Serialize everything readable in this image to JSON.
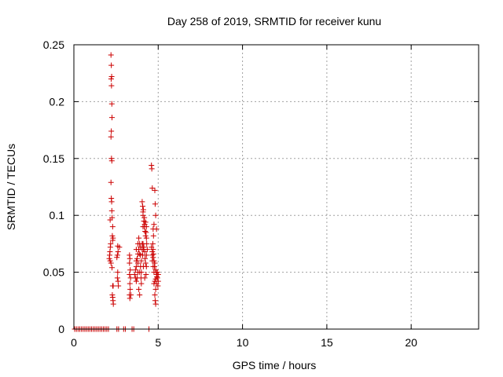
{
  "chart_data": {
    "type": "scatter",
    "title": "Day 258 of 2019, SRMTID for receiver kunu",
    "xlabel": "GPS time / hours",
    "ylabel": "SRMTID / TECUs",
    "xlim": [
      0,
      24
    ],
    "ylim": [
      0,
      0.25
    ],
    "xticks": [
      0,
      5,
      10,
      15,
      20
    ],
    "xtick_labels": [
      "0",
      "5",
      "10",
      "15",
      "20"
    ],
    "yticks": [
      0,
      0.05,
      0.1,
      0.15,
      0.2,
      0.25
    ],
    "ytick_labels": [
      "0",
      "0.05",
      "0.1",
      "0.15",
      "0.2",
      "0.25"
    ],
    "grid": true,
    "legend": "none",
    "marker": "plus",
    "colors": {
      "points": "#cc0000",
      "grid": "#a0a0a0",
      "axes": "#000000"
    },
    "series": [
      {
        "points": [
          [
            0.05,
            0
          ],
          [
            0.15,
            0
          ],
          [
            0.25,
            0
          ],
          [
            0.35,
            0
          ],
          [
            0.45,
            0
          ],
          [
            0.55,
            0
          ],
          [
            0.65,
            0
          ],
          [
            0.75,
            0
          ],
          [
            0.85,
            0
          ],
          [
            0.95,
            0
          ],
          [
            1.05,
            0
          ],
          [
            1.15,
            0
          ],
          [
            1.25,
            0
          ],
          [
            1.35,
            0
          ],
          [
            1.45,
            0
          ],
          [
            1.55,
            0
          ],
          [
            1.65,
            0
          ],
          [
            1.75,
            0
          ],
          [
            1.85,
            0
          ],
          [
            1.95,
            0
          ],
          [
            2.05,
            0
          ],
          [
            2.55,
            0
          ],
          [
            2.65,
            0
          ],
          [
            2.95,
            0
          ],
          [
            3.05,
            0
          ],
          [
            3.45,
            0
          ],
          [
            3.55,
            0
          ],
          [
            4.45,
            0
          ],
          [
            2.2,
            0.241
          ],
          [
            2.22,
            0.232
          ],
          [
            2.24,
            0.222
          ],
          [
            2.21,
            0.22
          ],
          [
            2.23,
            0.214
          ],
          [
            2.25,
            0.198
          ],
          [
            2.26,
            0.186
          ],
          [
            2.22,
            0.174
          ],
          [
            2.2,
            0.169
          ],
          [
            2.23,
            0.15
          ],
          [
            2.25,
            0.148
          ],
          [
            2.2,
            0.129
          ],
          [
            2.22,
            0.115
          ],
          [
            2.24,
            0.112
          ],
          [
            2.25,
            0.104
          ],
          [
            2.27,
            0.098
          ],
          [
            2.15,
            0.096
          ],
          [
            2.3,
            0.09
          ],
          [
            2.28,
            0.082
          ],
          [
            2.32,
            0.08
          ],
          [
            2.3,
            0.078
          ],
          [
            2.18,
            0.075
          ],
          [
            2.16,
            0.072
          ],
          [
            2.14,
            0.068
          ],
          [
            2.12,
            0.065
          ],
          [
            2.1,
            0.062
          ],
          [
            2.15,
            0.06
          ],
          [
            2.2,
            0.058
          ],
          [
            2.26,
            0.054
          ],
          [
            2.3,
            0.038
          ],
          [
            2.33,
            0.038
          ],
          [
            2.28,
            0.03
          ],
          [
            2.3,
            0.028
          ],
          [
            2.32,
            0.025
          ],
          [
            2.34,
            0.022
          ],
          [
            2.6,
            0.073
          ],
          [
            2.62,
            0.068
          ],
          [
            2.58,
            0.065
          ],
          [
            2.55,
            0.063
          ],
          [
            2.6,
            0.05
          ],
          [
            2.58,
            0.045
          ],
          [
            2.62,
            0.042
          ],
          [
            2.64,
            0.038
          ],
          [
            2.7,
            0.072
          ],
          [
            3.3,
            0.065
          ],
          [
            3.32,
            0.062
          ],
          [
            3.3,
            0.058
          ],
          [
            3.34,
            0.052
          ],
          [
            3.3,
            0.048
          ],
          [
            3.36,
            0.045
          ],
          [
            3.32,
            0.04
          ],
          [
            3.34,
            0.035
          ],
          [
            3.3,
            0.03
          ],
          [
            3.32,
            0.027
          ],
          [
            3.38,
            0.03
          ],
          [
            3.6,
            0.048
          ],
          [
            3.65,
            0.052
          ],
          [
            3.7,
            0.055
          ],
          [
            3.7,
            0.06
          ],
          [
            3.75,
            0.062
          ],
          [
            3.8,
            0.058
          ],
          [
            3.8,
            0.066
          ],
          [
            3.85,
            0.07
          ],
          [
            3.9,
            0.075
          ],
          [
            3.85,
            0.08
          ],
          [
            3.9,
            0.066
          ],
          [
            3.95,
            0.072
          ],
          [
            3.95,
            0.065
          ],
          [
            3.9,
            0.05
          ],
          [
            3.8,
            0.05
          ],
          [
            3.75,
            0.045
          ],
          [
            3.7,
            0.042
          ],
          [
            3.85,
            0.035
          ],
          [
            3.9,
            0.03
          ],
          [
            4.0,
            0.04
          ],
          [
            4.0,
            0.06
          ],
          [
            4.05,
            0.07
          ],
          [
            4.05,
            0.075
          ],
          [
            4.0,
            0.05
          ],
          [
            3.98,
            0.045
          ],
          [
            3.95,
            0.055
          ],
          [
            3.65,
            0.045
          ],
          [
            3.7,
            0.07
          ],
          [
            3.8,
            0.075
          ],
          [
            4.05,
            0.112
          ],
          [
            4.08,
            0.108
          ],
          [
            4.1,
            0.103
          ],
          [
            4.12,
            0.105
          ],
          [
            4.1,
            0.1
          ],
          [
            4.15,
            0.095
          ],
          [
            4.18,
            0.09
          ],
          [
            4.2,
            0.092
          ],
          [
            4.25,
            0.094
          ],
          [
            4.3,
            0.09
          ],
          [
            4.22,
            0.086
          ],
          [
            4.25,
            0.082
          ],
          [
            4.3,
            0.08
          ],
          [
            4.28,
            0.085
          ],
          [
            4.1,
            0.075
          ],
          [
            4.12,
            0.07
          ],
          [
            4.15,
            0.072
          ],
          [
            4.2,
            0.068
          ],
          [
            4.22,
            0.062
          ],
          [
            4.25,
            0.058
          ],
          [
            4.3,
            0.065
          ],
          [
            4.3,
            0.055
          ],
          [
            4.28,
            0.048
          ],
          [
            4.2,
            0.045
          ],
          [
            4.12,
            0.055
          ],
          [
            4.08,
            0.065
          ],
          [
            4.35,
            0.07
          ],
          [
            4.32,
            0.075
          ],
          [
            4.1,
            0.09
          ],
          [
            4.18,
            0.098
          ],
          [
            4.6,
            0.144
          ],
          [
            4.62,
            0.141
          ],
          [
            4.65,
            0.124
          ],
          [
            4.8,
            0.122
          ],
          [
            4.82,
            0.11
          ],
          [
            4.85,
            0.1
          ],
          [
            4.75,
            0.092
          ],
          [
            4.7,
            0.088
          ],
          [
            4.9,
            0.088
          ],
          [
            4.72,
            0.082
          ],
          [
            4.68,
            0.075
          ],
          [
            4.7,
            0.07
          ],
          [
            4.72,
            0.066
          ],
          [
            4.65,
            0.068
          ],
          [
            4.7,
            0.063
          ],
          [
            4.75,
            0.06
          ],
          [
            4.8,
            0.058
          ],
          [
            4.78,
            0.055
          ],
          [
            4.85,
            0.052
          ],
          [
            4.88,
            0.05
          ],
          [
            4.9,
            0.048
          ],
          [
            4.92,
            0.046
          ],
          [
            4.95,
            0.05
          ],
          [
            5.0,
            0.048
          ],
          [
            4.95,
            0.045
          ],
          [
            4.85,
            0.044
          ],
          [
            4.8,
            0.042
          ],
          [
            4.75,
            0.04
          ],
          [
            4.9,
            0.04
          ],
          [
            4.85,
            0.035
          ],
          [
            4.8,
            0.03
          ],
          [
            4.82,
            0.025
          ],
          [
            4.85,
            0.022
          ],
          [
            4.75,
            0.05
          ],
          [
            4.7,
            0.055
          ],
          [
            4.65,
            0.06
          ],
          [
            5.0,
            0.042
          ],
          [
            4.98,
            0.038
          ],
          [
            4.6,
            0.072
          ],
          [
            4.65,
            0.065
          ]
        ]
      }
    ]
  }
}
